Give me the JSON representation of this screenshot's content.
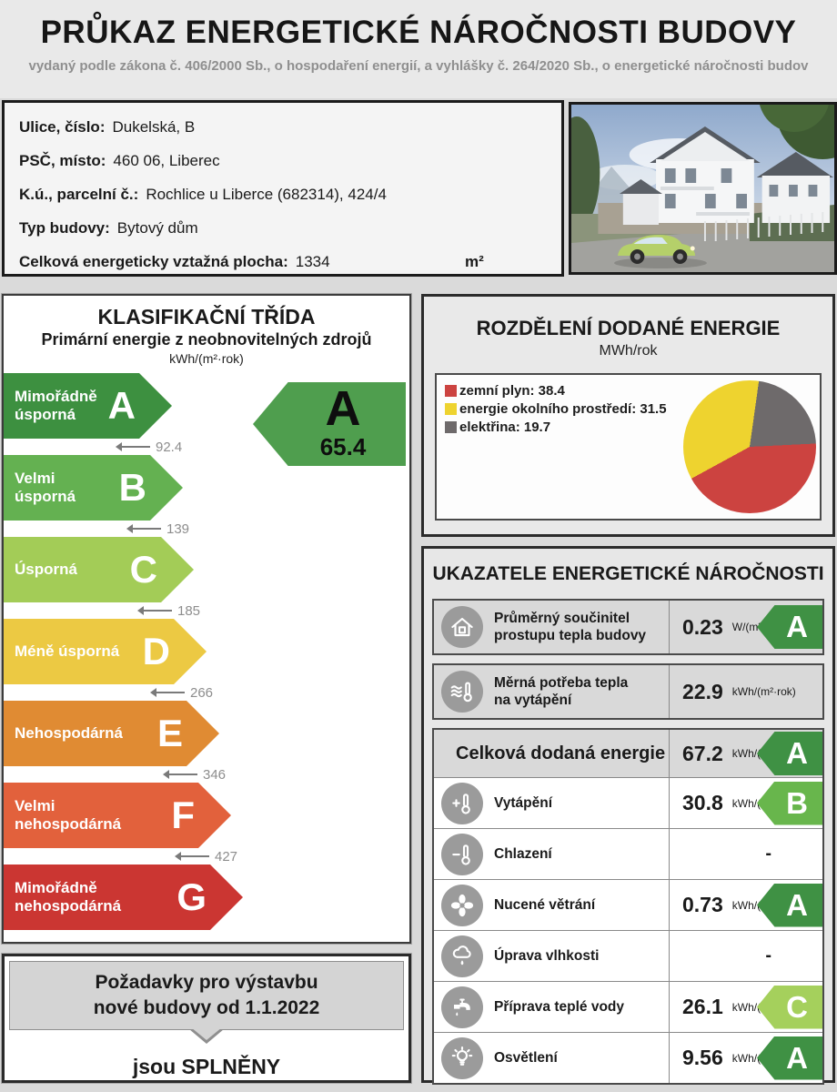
{
  "header": {
    "title": "PRŮKAZ ENERGETICKÉ NÁROČNOSTI BUDOVY",
    "subtitle": "vydaný podle zákona č. 406/2000 Sb., o hospodaření energií, a vyhlášky č. 264/2020 Sb., o energetické náročnosti budov"
  },
  "building": {
    "rows": [
      {
        "label": "Ulice, číslo:",
        "value": "Dukelská, B"
      },
      {
        "label": "PSČ, místo:",
        "value": "460 06, Liberec"
      },
      {
        "label": "K.ú., parcelní č.:",
        "value": "Rochlice u Liberce (682314), 424/4"
      },
      {
        "label": "Typ budovy:",
        "value": "Bytový dům"
      },
      {
        "label": "Celková energeticky vztažná plocha:",
        "value": "1334",
        "unit": "m²"
      }
    ]
  },
  "classification": {
    "title": "KLASIFIKAČNÍ TŘÍDA",
    "subtitle": "Primární energie z neobnovitelných zdrojů",
    "unit": "kWh/(m²·rok)",
    "classes": [
      {
        "letter": "A",
        "label": "Mimořádně\núsporná",
        "color": "#3d9040",
        "tip": 185,
        "threshold": "92.4"
      },
      {
        "letter": "B",
        "label": "Velmi\núsporná",
        "color": "#64b151",
        "tip": 197,
        "threshold": "139"
      },
      {
        "letter": "C",
        "label": "Úsporná",
        "color": "#a3cc57",
        "tip": 209,
        "threshold": "185"
      },
      {
        "letter": "D",
        "label": "Méně úsporná",
        "color": "#ecc943",
        "tip": 223,
        "threshold": "266"
      },
      {
        "letter": "E",
        "label": "Nehospodárná",
        "color": "#e08b33",
        "tip": 237,
        "threshold": "346"
      },
      {
        "letter": "F",
        "label": "Velmi\nnehospodárná",
        "color": "#e2613c",
        "tip": 250,
        "threshold": "427"
      },
      {
        "letter": "G",
        "label": "Mimořádně\nnehospodárná",
        "color": "#cb3632",
        "tip": 263,
        "threshold": null
      }
    ],
    "indicator": {
      "letter": "A",
      "value": "65.4",
      "color": "#4f9e4e"
    },
    "requirements": {
      "line1": "Požadavky pro výstavbu",
      "line2": "nové budovy od 1.1.2022",
      "result": "jsou SPLNĚNY"
    }
  },
  "distribution": {
    "title": "ROZDĚLENÍ DODANÉ ENERGIE",
    "unit": "MWh/rok",
    "legend": [
      {
        "text": "zemní plyn: 38.4",
        "color": "#cc4340"
      },
      {
        "text": "energie okolního prostředí: 31.5",
        "color": "#eed32f"
      },
      {
        "text": "elektřina: 19.7",
        "color": "#6e6a6b"
      }
    ],
    "pie": {
      "type": "pie",
      "start_deg": 8,
      "slices": [
        {
          "name": "elektřina",
          "value": 19.7,
          "color": "#6e6a6b"
        },
        {
          "name": "zemní plyn",
          "value": 38.4,
          "color": "#cc4340"
        },
        {
          "name": "energie okolního prostředí",
          "value": 31.5,
          "color": "#eed32f"
        }
      ]
    }
  },
  "indicators": {
    "title": "UKAZATELE ENERGETICKÉ NÁROČNOSTI",
    "rows": [
      {
        "id": "prumerny-soucinitel",
        "standalone": true,
        "icon": "house",
        "label": "Průměrný součinitel\nprostupu tepla budovy",
        "value": "0.23",
        "unit": "W/(m²·K)",
        "badge": "A",
        "badge_color": "#3f9144"
      },
      {
        "id": "merna-potreba",
        "standalone": true,
        "icon": "heat",
        "label": "Měrná potřeba tepla\nna vytápění",
        "value": "22.9",
        "unit": "kWh/(m²·rok)"
      },
      {
        "id": "celkova-dodana",
        "total": true,
        "label": "Celková dodaná energie",
        "value": "67.2",
        "unit": "kWh/(m²·rok)",
        "badge": "A",
        "badge_color": "#3f9144"
      },
      {
        "id": "vytapeni",
        "icon": "thermo-plus",
        "label": "Vytápění",
        "value": "30.8",
        "unit": "kWh/(m²·rok)",
        "badge": "B",
        "badge_color": "#68b64c"
      },
      {
        "id": "chlazeni",
        "icon": "thermo-minus",
        "label": "Chlazení",
        "dash": "-"
      },
      {
        "id": "nucene-vetrani",
        "icon": "fan",
        "label": "Nucené větrání",
        "value": "0.73",
        "unit": "kWh/(m²·rok)",
        "badge": "A",
        "badge_color": "#3f9144"
      },
      {
        "id": "uprava-vlhkosti",
        "icon": "humidity",
        "label": "Úprava vlhkosti",
        "dash": "-"
      },
      {
        "id": "priprava-teple-vody",
        "icon": "faucet",
        "label": "Příprava teplé vody",
        "value": "26.1",
        "unit": "kWh/(m²·rok)",
        "badge": "C",
        "badge_color": "#a5d05c"
      },
      {
        "id": "osvetleni",
        "icon": "bulb",
        "label": "Osvětlení",
        "value": "9.56",
        "unit": "kWh/(m²·rok)",
        "badge": "A",
        "badge_color": "#3f9144"
      }
    ]
  }
}
